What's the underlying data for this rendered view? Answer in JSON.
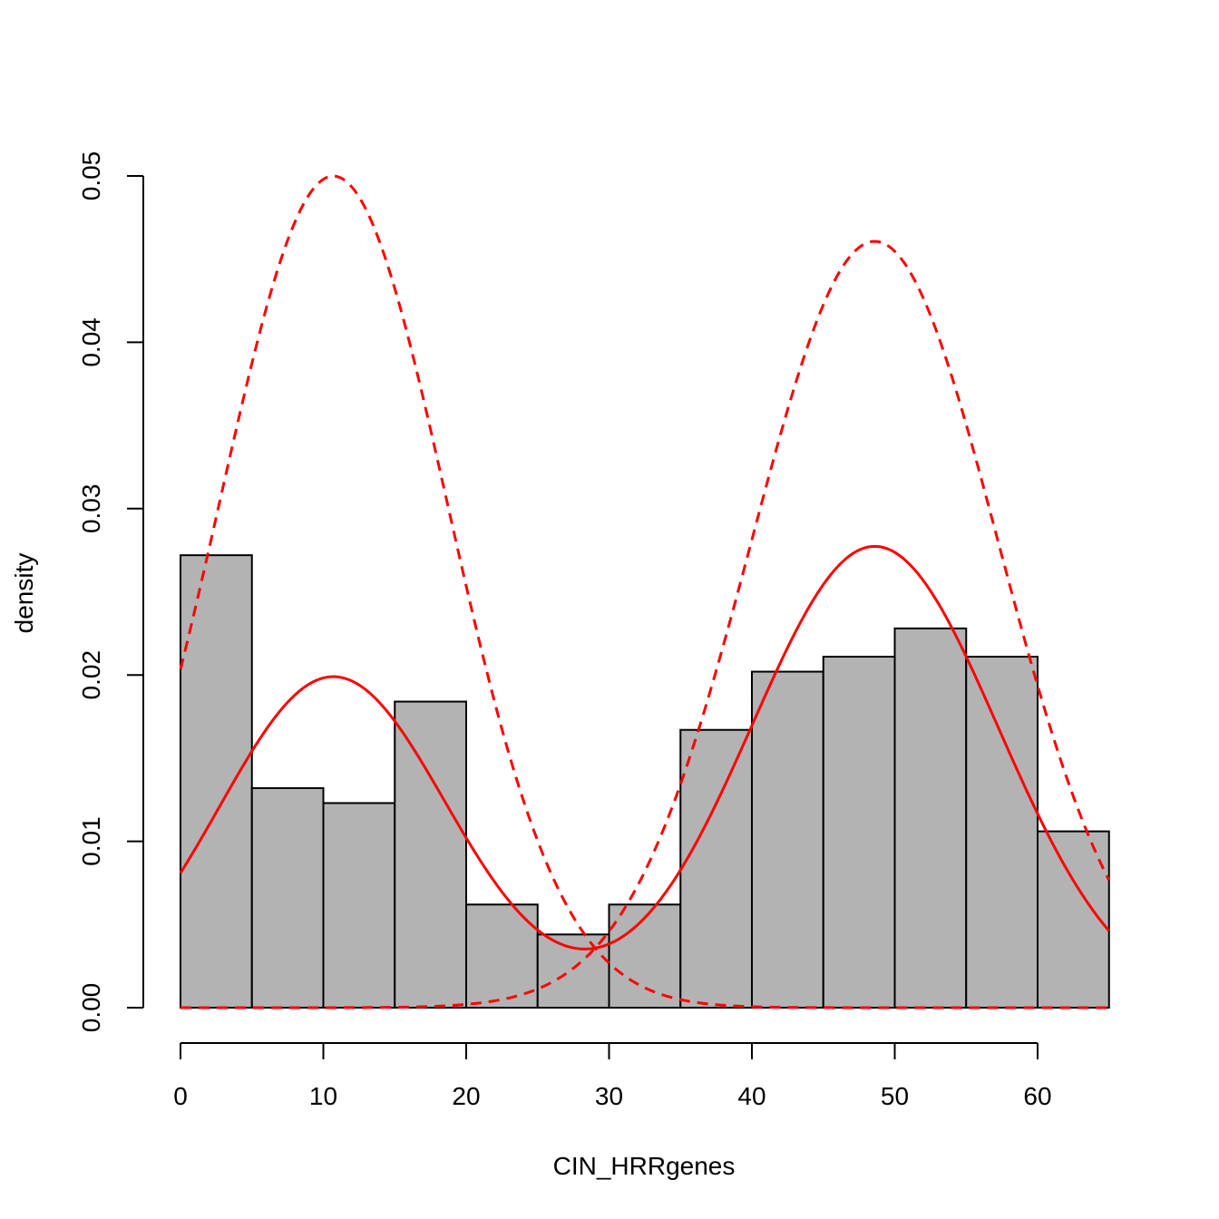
{
  "chart_data": {
    "type": "bar",
    "xlabel": "CIN_HRRgenes",
    "ylabel": "density",
    "x_ticks": [
      0,
      10,
      20,
      30,
      40,
      50,
      60
    ],
    "x_tick_labels": [
      "0",
      "10",
      "20",
      "30",
      "40",
      "50",
      "60"
    ],
    "y_ticks": [
      0,
      0.01,
      0.02,
      0.03,
      0.04,
      0.05
    ],
    "y_tick_labels": [
      "0.00",
      "0.01",
      "0.02",
      "0.03",
      "0.04",
      "0.05"
    ],
    "xlim": [
      0,
      65
    ],
    "ylim": [
      0,
      0.05
    ],
    "grid": false,
    "histogram": {
      "bin_edges": [
        0,
        5,
        10,
        15,
        20,
        25,
        30,
        35,
        40,
        45,
        50,
        55,
        60,
        65
      ],
      "densities": [
        0.0272,
        0.0132,
        0.0123,
        0.0184,
        0.0062,
        0.0044,
        0.0062,
        0.0167,
        0.0202,
        0.0211,
        0.0228,
        0.0211,
        0.0106
      ],
      "fill": "#b3b3b3",
      "stroke": "#000000"
    },
    "curves": [
      {
        "style": "dashed",
        "color": "#ff0000",
        "kind": "normal",
        "mean": 10.7,
        "sd": 7.98,
        "scale": 1.0
      },
      {
        "style": "dashed",
        "color": "#ff0000",
        "kind": "normal",
        "mean": 48.6,
        "sd": 8.66,
        "scale": 1.0
      },
      {
        "style": "solid",
        "color": "#ff0000",
        "kind": "mixture",
        "components": [
          {
            "mean": 10.7,
            "sd": 7.98,
            "weight": 0.398
          },
          {
            "mean": 48.6,
            "sd": 8.66,
            "weight": 0.602
          }
        ]
      }
    ]
  }
}
